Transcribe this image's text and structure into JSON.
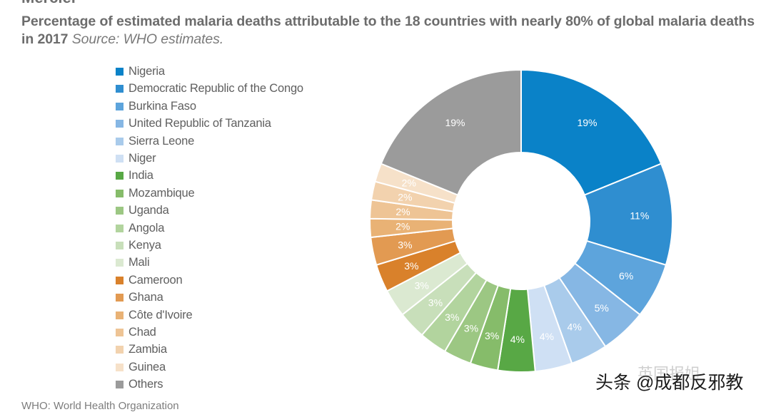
{
  "header": {
    "cut_text": "Mercier"
  },
  "chart_data": {
    "type": "pie",
    "donut": true,
    "title": "Percentage of estimated malaria deaths attributable to the 18 countries with nearly 80% of global malaria deaths in 2017",
    "source": "Source: WHO estimates.",
    "categories": [
      "Nigeria",
      "Democratic Republic of the Congo",
      "Burkina Faso",
      "United Republic of Tanzania",
      "Sierra Leone",
      "Niger",
      "India",
      "Mozambique",
      "Uganda",
      "Angola",
      "Kenya",
      "Mali",
      "Cameroon",
      "Ghana",
      "Côte d'Ivoire",
      "Chad",
      "Zambia",
      "Guinea",
      "Others"
    ],
    "values": [
      19,
      11,
      6,
      5,
      4,
      4,
      4,
      3,
      3,
      3,
      3,
      3,
      3,
      3,
      2,
      2,
      2,
      2,
      19
    ],
    "slice_labels": [
      "19%",
      "11%",
      "6%",
      "5%",
      "4%",
      "4%",
      "4%",
      "3%",
      "3%",
      "3%",
      "3%",
      "3%",
      "3%",
      "3%",
      "2%",
      "2%",
      "2%",
      "2%",
      "19%"
    ],
    "colors": [
      "#0a82c8",
      "#2f8ed0",
      "#5da4dc",
      "#86b7e4",
      "#a9cbeb",
      "#cfe0f4",
      "#58a845",
      "#86bc6a",
      "#9cc783",
      "#b2d49e",
      "#c8dfba",
      "#dbe9d1",
      "#d9812b",
      "#e29a52",
      "#e9b275",
      "#eec495",
      "#f2d2ae",
      "#f6e1c9",
      "#9b9b9b"
    ],
    "legend_position": "left"
  },
  "footnote": "WHO: World Health Organization",
  "watermark": {
    "text": "头条 @成都反邪教",
    "faded_text": "英国报姐"
  }
}
